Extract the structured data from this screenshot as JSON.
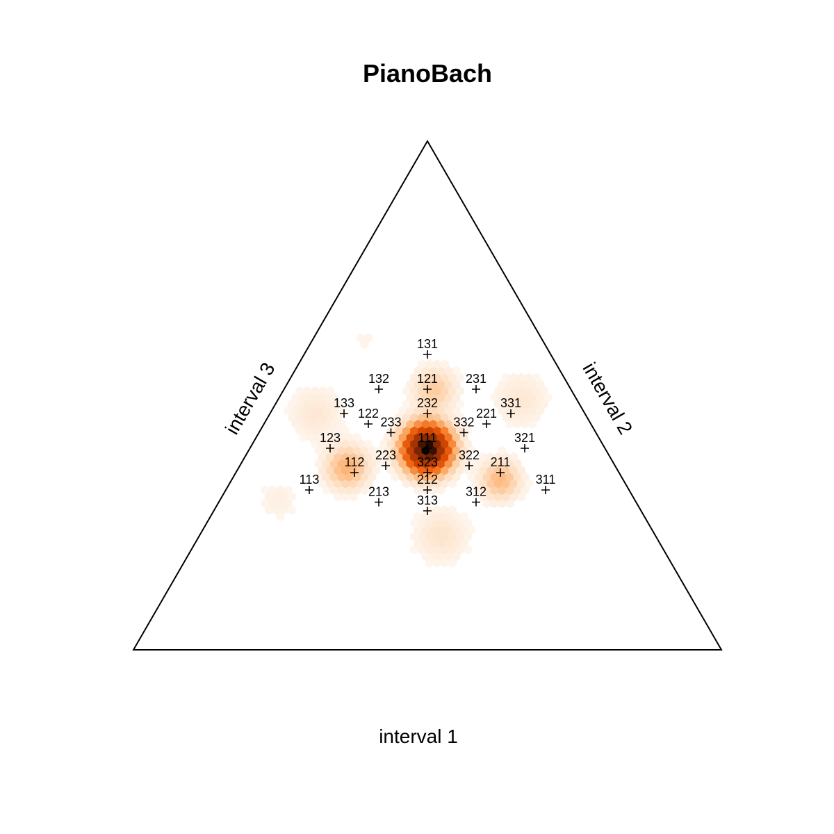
{
  "chart_data": {
    "type": "heatmap",
    "title": "PianoBach",
    "axis_labels": {
      "bottom": "interval 1",
      "right": "interval 2",
      "left": "interval 3"
    },
    "colormap": [
      "#ffffff",
      "#fde0c5",
      "#fdae6b",
      "#f16913",
      "#d94801",
      "#a63603",
      "#7f2704",
      "#000000"
    ],
    "points": [
      {
        "label": "131",
        "x": 0.0,
        "y": 3.6
      },
      {
        "label": "132",
        "x": -1.4,
        "y": 2.6
      },
      {
        "label": "121",
        "x": 0.0,
        "y": 2.6
      },
      {
        "label": "231",
        "x": 1.4,
        "y": 2.6
      },
      {
        "label": "133",
        "x": -2.4,
        "y": 1.9
      },
      {
        "label": "232",
        "x": 0.0,
        "y": 1.9
      },
      {
        "label": "331",
        "x": 2.4,
        "y": 1.9
      },
      {
        "label": "122",
        "x": -1.7,
        "y": 1.6
      },
      {
        "label": "221",
        "x": 1.7,
        "y": 1.6
      },
      {
        "label": "233",
        "x": -1.05,
        "y": 1.35
      },
      {
        "label": "332",
        "x": 1.05,
        "y": 1.35
      },
      {
        "label": "111",
        "x": 0.0,
        "y": 0.9
      },
      {
        "label": "123",
        "x": -2.8,
        "y": 0.9
      },
      {
        "label": "321",
        "x": 2.8,
        "y": 0.9
      },
      {
        "label": "223",
        "x": -1.2,
        "y": 0.4
      },
      {
        "label": "322",
        "x": 1.2,
        "y": 0.4
      },
      {
        "label": "112",
        "x": -2.1,
        "y": 0.2
      },
      {
        "label": "323",
        "x": 0.0,
        "y": 0.2
      },
      {
        "label": "211",
        "x": 2.1,
        "y": 0.2
      },
      {
        "label": "113",
        "x": -3.4,
        "y": -0.3
      },
      {
        "label": "212",
        "x": 0.0,
        "y": -0.3
      },
      {
        "label": "311",
        "x": 3.4,
        "y": -0.3
      },
      {
        "label": "213",
        "x": -1.4,
        "y": -0.65
      },
      {
        "label": "312",
        "x": 1.4,
        "y": -0.65
      },
      {
        "label": "313",
        "x": 0.0,
        "y": -0.9
      }
    ],
    "density_peaks": [
      {
        "x": 0.0,
        "y": 0.9,
        "weight": 1.0,
        "spread": 0.75
      },
      {
        "x": -2.3,
        "y": 0.35,
        "weight": 0.18,
        "spread": 0.7
      },
      {
        "x": 2.1,
        "y": 0.0,
        "weight": 0.16,
        "spread": 0.65
      },
      {
        "x": 0.2,
        "y": 2.6,
        "weight": 0.12,
        "spread": 0.7
      },
      {
        "x": 2.7,
        "y": 2.3,
        "weight": 0.05,
        "spread": 0.9
      },
      {
        "x": -3.2,
        "y": 1.9,
        "weight": 0.05,
        "spread": 0.9
      },
      {
        "x": 0.4,
        "y": -1.6,
        "weight": 0.06,
        "spread": 0.9
      },
      {
        "x": -4.3,
        "y": -0.6,
        "weight": 0.03,
        "spread": 0.7
      },
      {
        "x": -1.8,
        "y": 4.0,
        "weight": 0.02,
        "spread": 0.5
      }
    ]
  }
}
